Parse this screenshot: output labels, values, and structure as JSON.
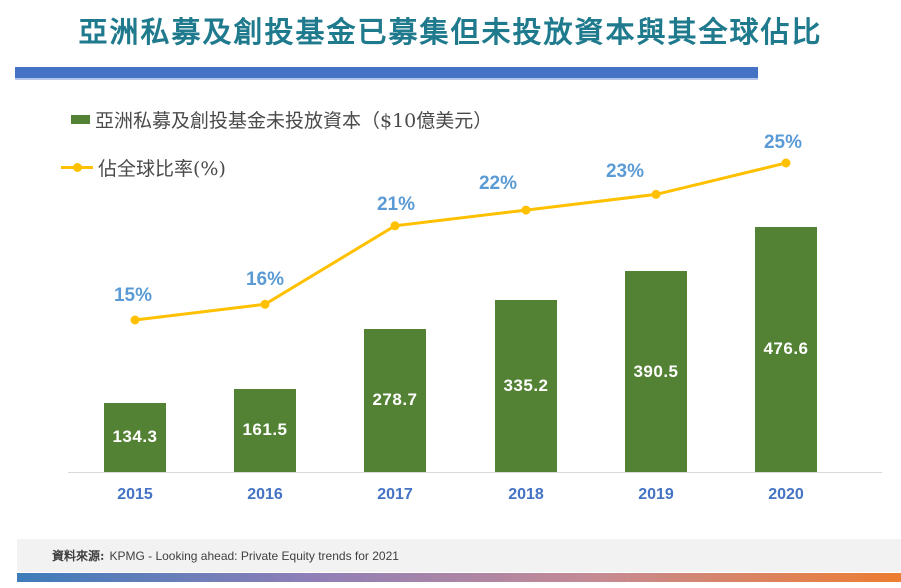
{
  "title": "亞洲私募及創投基金已募集但未投放資本與其全球佔比",
  "footer": {
    "source_label": "資料來源:",
    "source_text": "KPMG - Looking ahead: Private Equity trends for 2021"
  },
  "chart_data": {
    "type": "bar",
    "subtype": "bar-line-combo",
    "categories": [
      "2015",
      "2016",
      "2017",
      "2018",
      "2019",
      "2020"
    ],
    "series": [
      {
        "name": "亞洲私募及創投基金未投放資本（$10億美元）",
        "type": "bar",
        "values": [
          134.3,
          161.5,
          278.7,
          335.2,
          390.5,
          476.6
        ],
        "data_labels": [
          "134.3",
          "161.5",
          "278.7",
          "335.2",
          "390.5",
          "476.6"
        ],
        "color": "#548235",
        "data_label_color": "#FFFFFF"
      },
      {
        "name": "佔全球比率(%)",
        "type": "line",
        "values": [
          15,
          16,
          21,
          22,
          23,
          25
        ],
        "data_labels": [
          "15%",
          "16%",
          "21%",
          "22%",
          "23%",
          "25%"
        ],
        "color": "#FFC000",
        "data_label_color": "#5B9BD5"
      }
    ],
    "title": "亞洲私募及創投基金已募集但未投放資本與其全球佔比",
    "xlabel": "",
    "ylabel": "",
    "ylim_primary": [
      0,
      500
    ],
    "ylim_secondary_pct": [
      0,
      30
    ],
    "grid": false,
    "legend_position": "top-left",
    "x_tick_color": "#4472C4",
    "axis_line_color": "#D9D9D9"
  },
  "colors": {
    "title": "#1E7A8C",
    "title_divider": "#4472C4",
    "bar_fill": "#548235",
    "line_stroke": "#FFC000",
    "pct_label": "#5B9BD5",
    "year_label": "#4472C4",
    "footer_bg": "#F2F2F2",
    "footer_text": "#404040",
    "gradient_left": "#3E7CBA",
    "gradient_mid1": "#8E7FB8",
    "gradient_mid2": "#C68A93",
    "gradient_right": "#ED7D31"
  }
}
